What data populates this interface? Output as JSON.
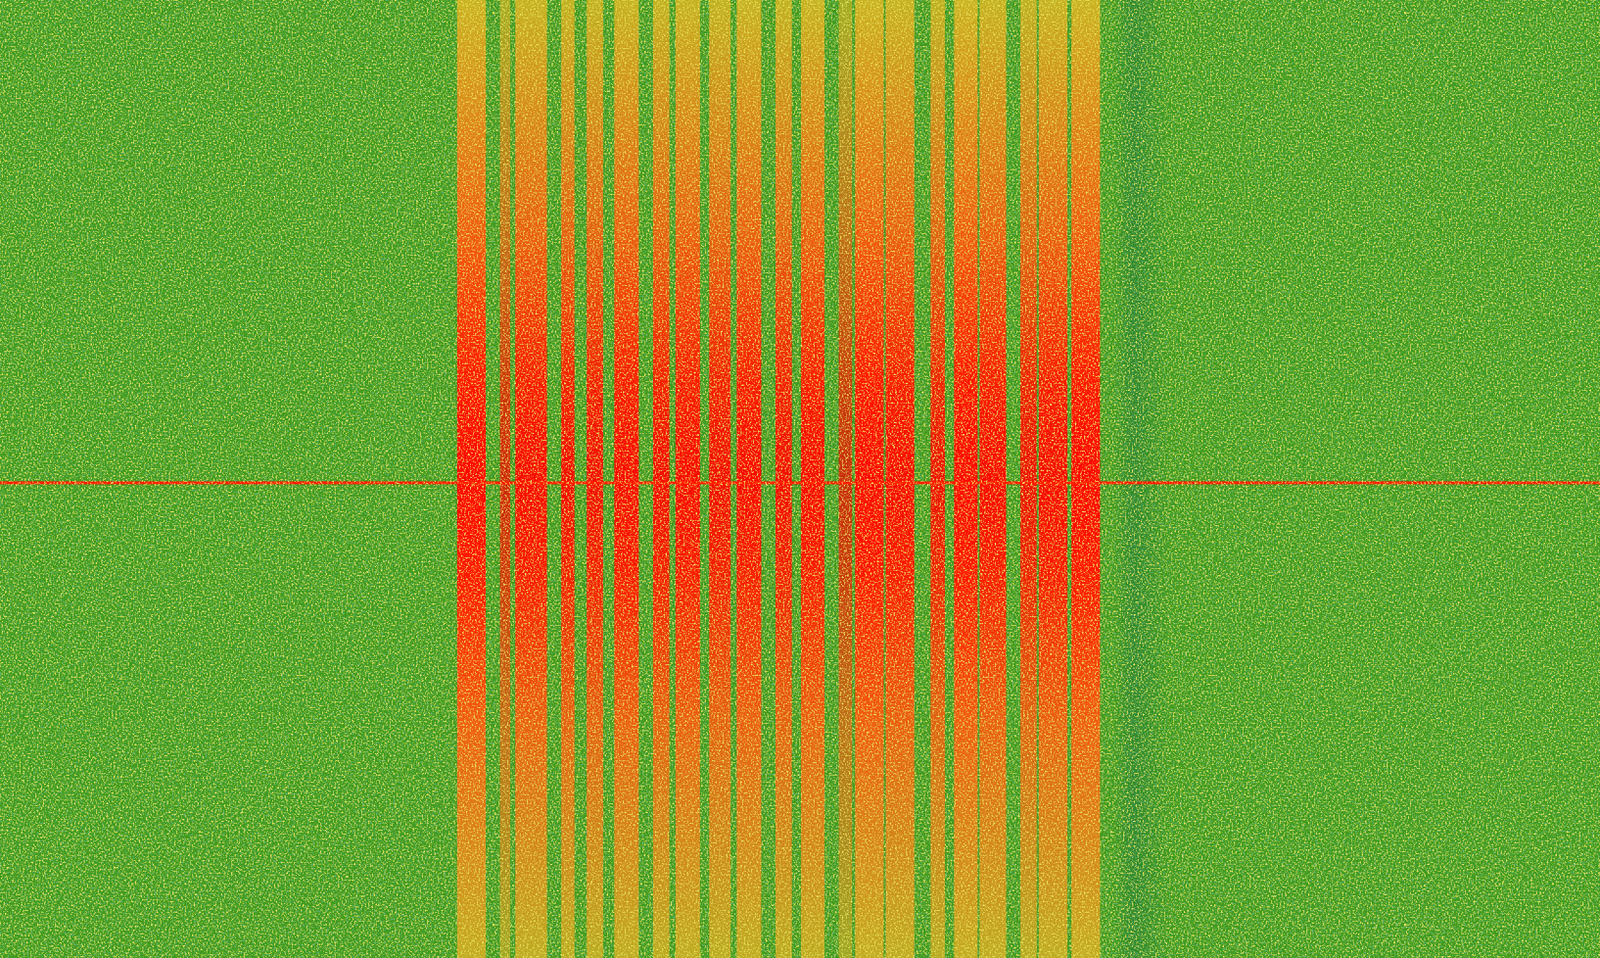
{
  "chart_data": {
    "type": "spectrogram",
    "tick_labels": false,
    "xlim": [
      0,
      1568
    ],
    "ylim": [
      0,
      1
    ],
    "center_line": 0.496,
    "dim_band": {
      "start": 1092,
      "end": 1145,
      "level": 0.35
    },
    "bands": [
      {
        "start": 448,
        "end": 476,
        "level": 1.0
      },
      {
        "start": 490,
        "end": 500,
        "level": 0.6
      },
      {
        "start": 505,
        "end": 536,
        "level": 0.95
      },
      {
        "start": 550,
        "end": 563,
        "level": 0.9
      },
      {
        "start": 575,
        "end": 591,
        "level": 0.9
      },
      {
        "start": 602,
        "end": 626,
        "level": 0.95
      },
      {
        "start": 640,
        "end": 656,
        "level": 0.9
      },
      {
        "start": 662,
        "end": 686,
        "level": 0.95
      },
      {
        "start": 695,
        "end": 716,
        "level": 0.9
      },
      {
        "start": 722,
        "end": 746,
        "level": 0.95
      },
      {
        "start": 760,
        "end": 776,
        "level": 0.9
      },
      {
        "start": 785,
        "end": 808,
        "level": 0.95
      },
      {
        "start": 822,
        "end": 835,
        "level": 0.55
      },
      {
        "start": 838,
        "end": 866,
        "level": 1.0
      },
      {
        "start": 868,
        "end": 896,
        "level": 0.95
      },
      {
        "start": 912,
        "end": 926,
        "level": 0.85
      },
      {
        "start": 935,
        "end": 958,
        "level": 1.0
      },
      {
        "start": 960,
        "end": 986,
        "level": 0.95
      },
      {
        "start": 1000,
        "end": 1016,
        "level": 0.85
      },
      {
        "start": 1018,
        "end": 1046,
        "level": 0.95
      },
      {
        "start": 1050,
        "end": 1078,
        "level": 1.0
      }
    ]
  }
}
